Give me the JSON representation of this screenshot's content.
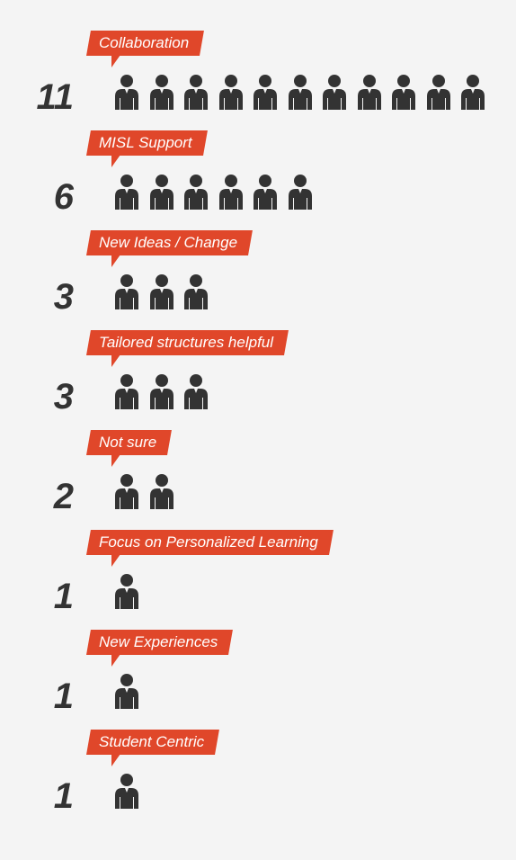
{
  "chart_data": {
    "type": "pictograph",
    "title": "",
    "categories": [
      "Collaboration",
      "MISL Support",
      "New Ideas / Change",
      "Tailored structures helpful",
      "Not sure",
      "Focus on Personalized Learning",
      "New Experiences",
      "Student Centric"
    ],
    "values": [
      11,
      6,
      3,
      3,
      2,
      1,
      1,
      1
    ],
    "value_labels": [
      "11",
      "6",
      "3",
      "3",
      "2",
      "1",
      "1",
      "1"
    ],
    "unit_icon": "person-icon",
    "colors": {
      "label_background": "#e0472a",
      "label_text": "#ffffff",
      "icon": "#333333",
      "count_text": "#333333",
      "background": "#f4f4f4"
    }
  }
}
